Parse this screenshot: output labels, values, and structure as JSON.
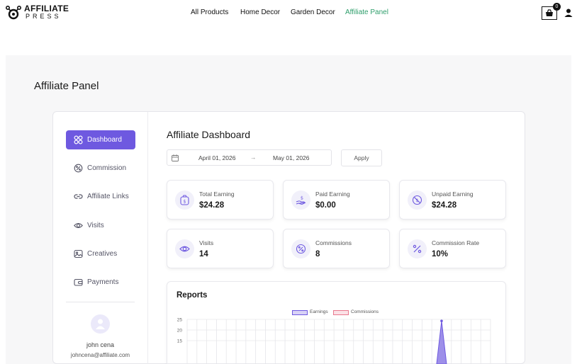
{
  "brand": {
    "line1": "AFFILIATE",
    "line2": "PRESS"
  },
  "nav": {
    "items": [
      {
        "label": "All Products"
      },
      {
        "label": "Home Decor"
      },
      {
        "label": "Garden Decor"
      },
      {
        "label": "Affiliate Panel",
        "active": true
      }
    ]
  },
  "cart": {
    "count": "0"
  },
  "page": {
    "title": "Affiliate Panel"
  },
  "sidebar": {
    "items": [
      {
        "label": "Dashboard",
        "icon": "grid-icon",
        "active": true
      },
      {
        "label": "Commission",
        "icon": "percent-badge-icon"
      },
      {
        "label": "Affiliate Links",
        "icon": "link-icon"
      },
      {
        "label": "Visits",
        "icon": "eye-icon"
      },
      {
        "label": "Creatives",
        "icon": "image-icon"
      },
      {
        "label": "Payments",
        "icon": "wallet-icon"
      }
    ],
    "user": {
      "name": "john cena",
      "email": "johncena@affiliate.com"
    }
  },
  "dashboard": {
    "title": "Affiliate Dashboard",
    "date_from": "April 01, 2026",
    "date_to": "May 01, 2026",
    "date_sep": "→",
    "apply_label": "Apply",
    "stats": [
      {
        "label": "Total Earning",
        "value": "$24.28",
        "icon": "dollar-bag-icon"
      },
      {
        "label": "Paid Earning",
        "value": "$0.00",
        "icon": "hand-dollar-icon"
      },
      {
        "label": "Unpaid Earning",
        "value": "$24.28",
        "icon": "no-dollar-icon"
      },
      {
        "label": "Visits",
        "value": "14",
        "icon": "eye-icon"
      },
      {
        "label": "Commissions",
        "value": "8",
        "icon": "percent-badge-icon"
      },
      {
        "label": "Commission Rate",
        "value": "10%",
        "icon": "percent-icon"
      }
    ]
  },
  "reports": {
    "title": "Reports"
  },
  "colors": {
    "accent": "#6e59e0",
    "active_nav": "#2e9e6b",
    "earnings": "#6e59e0",
    "commissions": "#e8788e"
  },
  "chart_data": {
    "type": "area",
    "series": [
      {
        "name": "Earnings"
      },
      {
        "name": "Commissions"
      }
    ],
    "y_ticks": [
      "25",
      "20",
      "15"
    ],
    "visible_peak": {
      "series": "Earnings",
      "value": 24.28
    },
    "grid": true,
    "legend": "top-center"
  }
}
